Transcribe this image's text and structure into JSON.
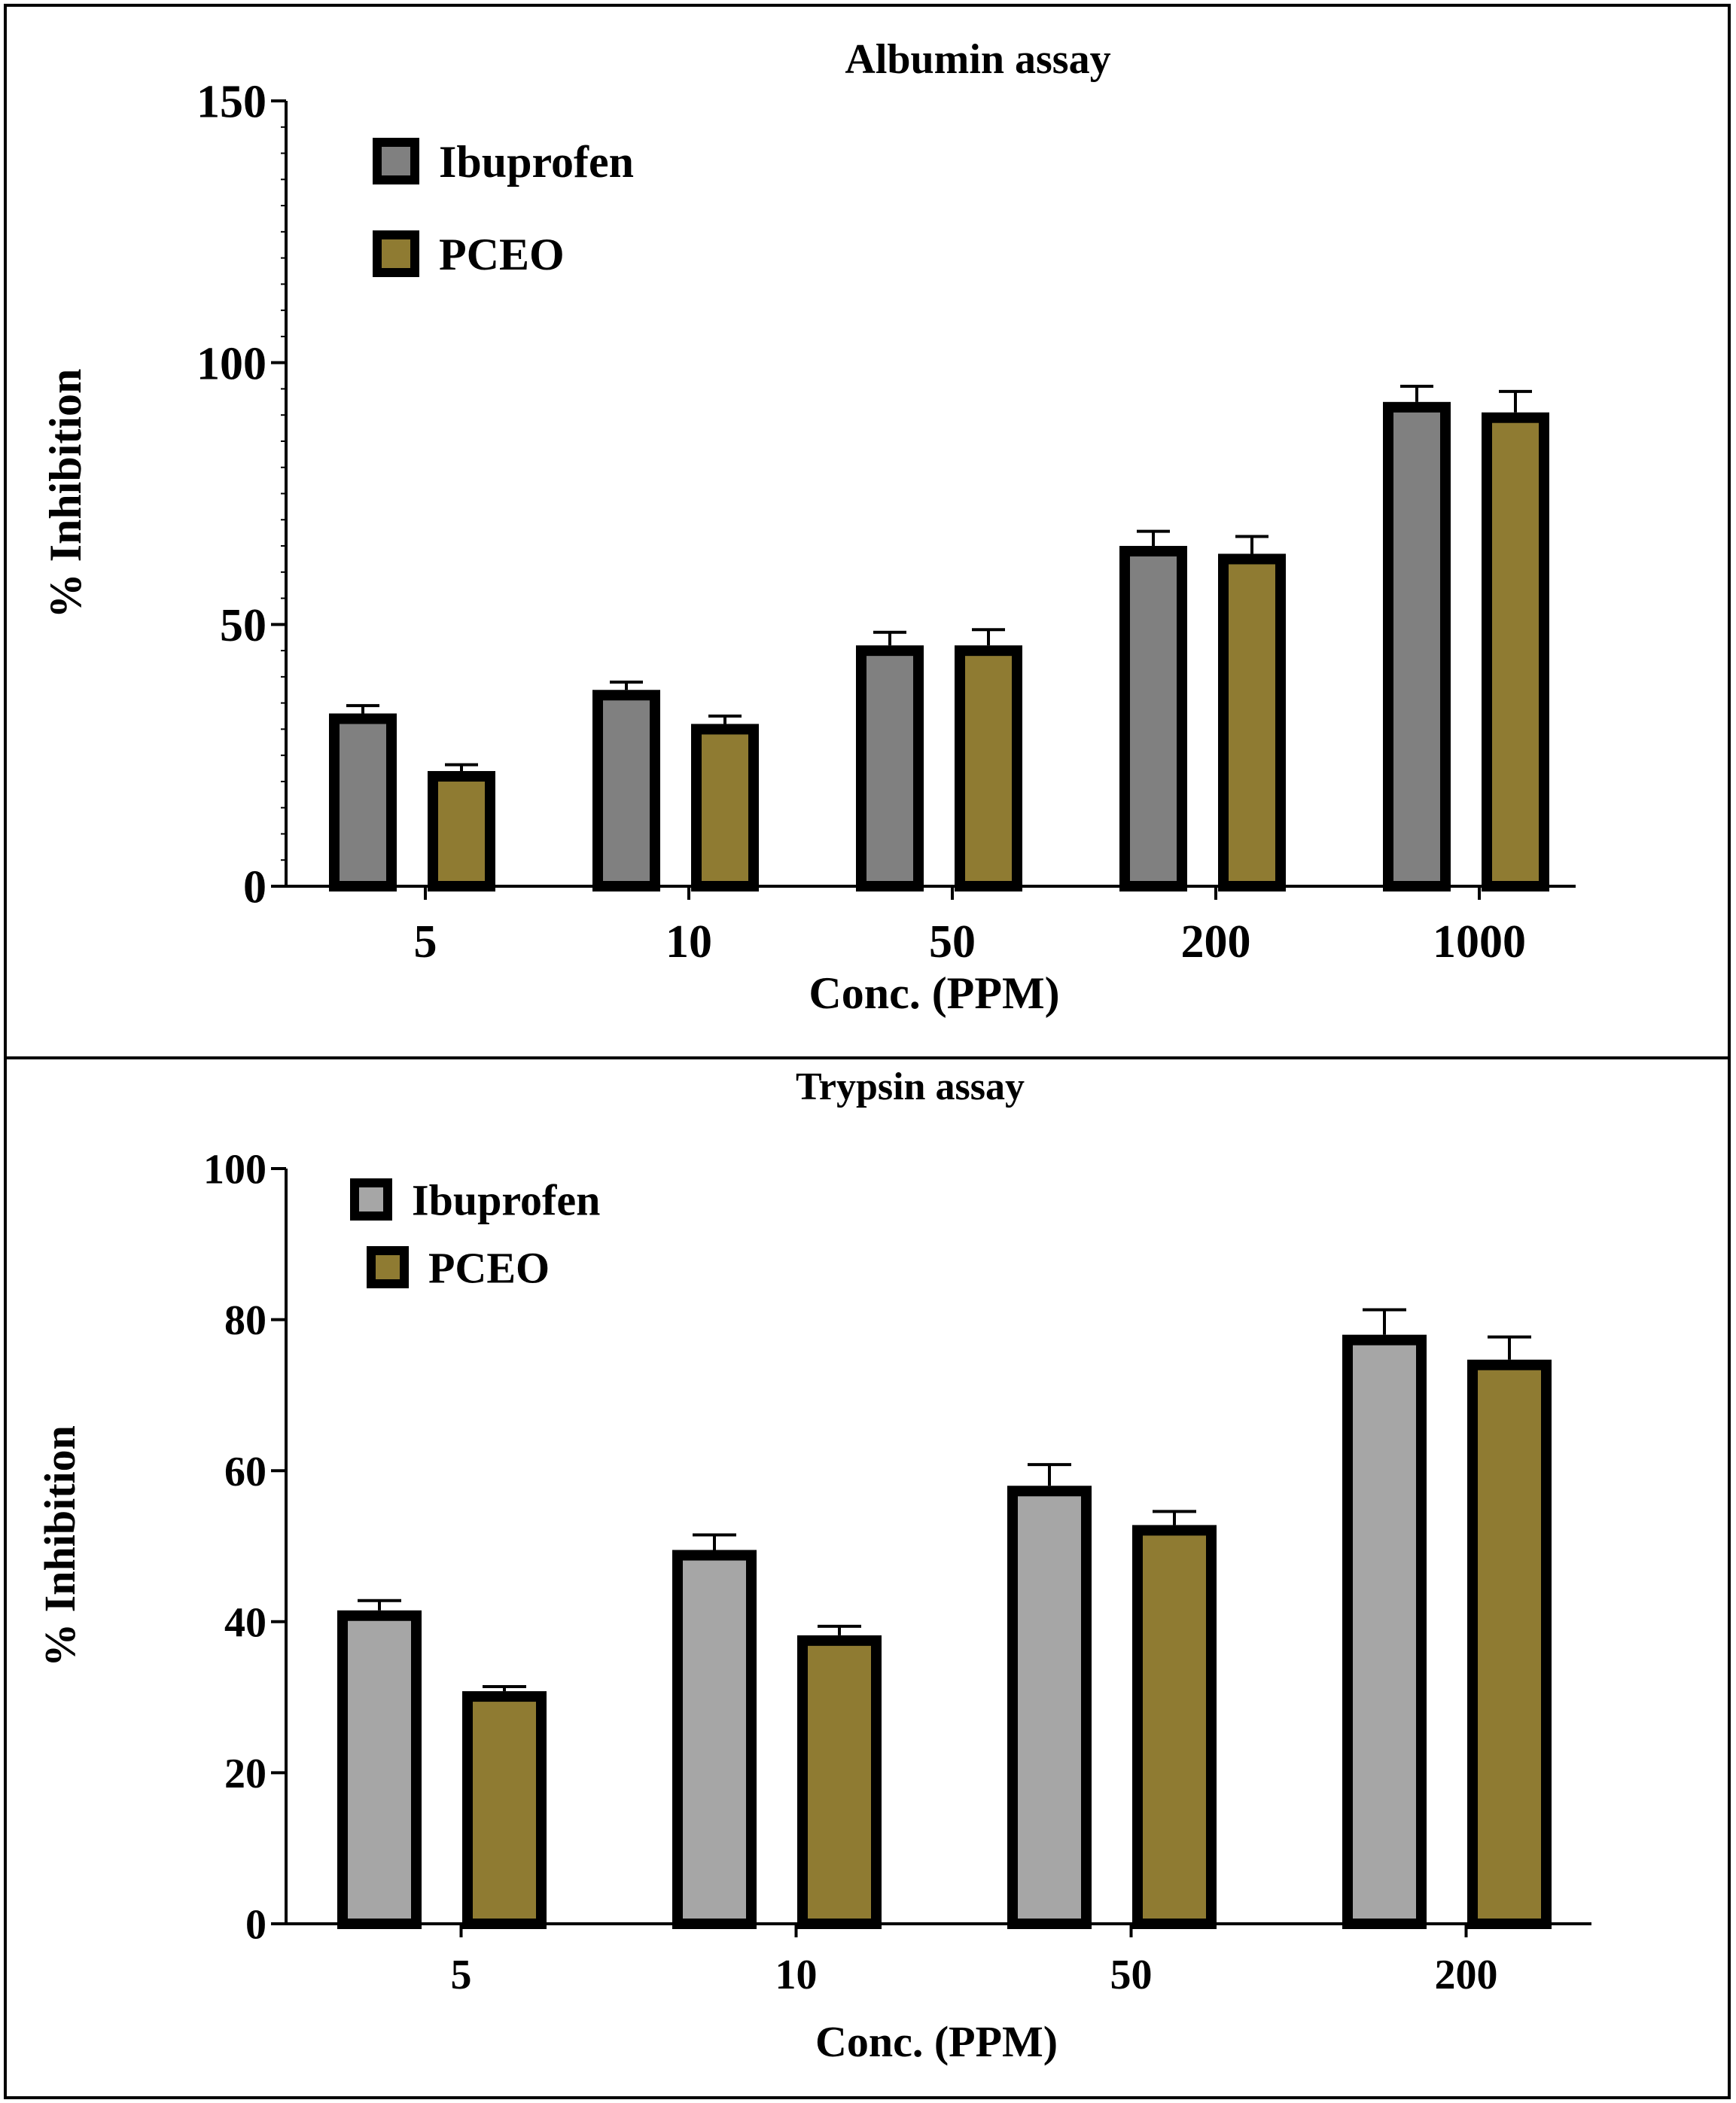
{
  "chart_data": [
    {
      "type": "bar",
      "title": "Albumin assay",
      "xlabel": "Conc. (PPM)",
      "ylabel": "% Inhibition",
      "ylim": [
        0,
        150
      ],
      "yticks": [
        0,
        50,
        100,
        150
      ],
      "minor_tick_step": 5,
      "categories": [
        "5",
        "10",
        "50",
        "200",
        "1000"
      ],
      "legend_position": "top-left",
      "series": [
        {
          "name": "Ibuprofen",
          "color": "#808080",
          "values": [
            33,
            37.5,
            46,
            65,
            92.5
          ],
          "errors": [
            1.5,
            1.5,
            2.5,
            2.8,
            3
          ]
        },
        {
          "name": "PCEO",
          "color": "#8f7b32",
          "values": [
            22,
            31,
            46,
            63.5,
            90.5
          ],
          "errors": [
            1.2,
            1.5,
            3,
            3.3,
            4
          ]
        }
      ]
    },
    {
      "type": "bar",
      "title": "Trypsin assay",
      "xlabel": "Conc. (PPM)",
      "ylabel": "% Inhibition",
      "ylim": [
        0,
        100
      ],
      "yticks": [
        0,
        20,
        40,
        60,
        80,
        100
      ],
      "minor_tick_step": 0,
      "categories": [
        "5",
        "10",
        "50",
        "200"
      ],
      "legend_position": "top-left",
      "series": [
        {
          "name": "Ibuprofen",
          "color": "#a6a6a6",
          "values": [
            41.5,
            49.5,
            58,
            78
          ],
          "errors": [
            1.3,
            2,
            2.8,
            3.3
          ]
        },
        {
          "name": "PCEO",
          "color": "#8f7b32",
          "values": [
            30.8,
            38.2,
            52.8,
            74.7
          ],
          "errors": [
            0.6,
            1.2,
            1.8,
            3
          ]
        }
      ]
    }
  ]
}
